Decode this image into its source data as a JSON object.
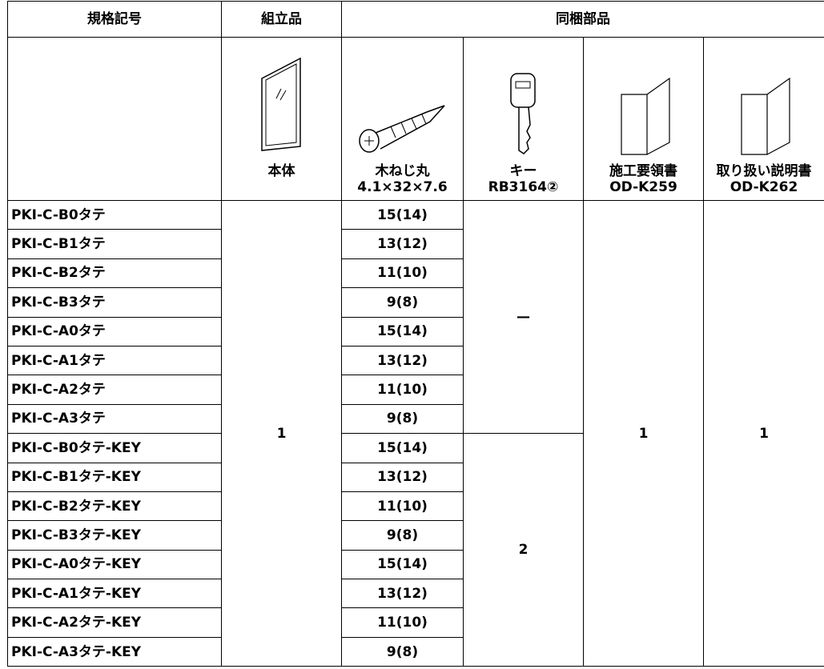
{
  "header": {
    "columns": [
      "規格記号",
      "組立品",
      "同梱部品"
    ]
  },
  "parts": [
    {
      "name": "本体"
    },
    {
      "name": "木ねじ丸",
      "spec": "4.1×32×7.6"
    },
    {
      "name": "キー",
      "spec": "RB3164②"
    },
    {
      "name": "施工要領書",
      "spec": "OD-K259"
    },
    {
      "name": "取り扱い説明書",
      "spec": "OD-K262"
    }
  ],
  "rows": [
    {
      "model": "PKI-C-B0タテ",
      "screws": "15(14)"
    },
    {
      "model": "PKI-C-B1タテ",
      "screws": "13(12)"
    },
    {
      "model": "PKI-C-B2タテ",
      "screws": "11(10)"
    },
    {
      "model": "PKI-C-B3タテ",
      "screws": "9(8)"
    },
    {
      "model": "PKI-C-A0タテ",
      "screws": "15(14)"
    },
    {
      "model": "PKI-C-A1タテ",
      "screws": "13(12)"
    },
    {
      "model": "PKI-C-A2タテ",
      "screws": "11(10)"
    },
    {
      "model": "PKI-C-A3タテ",
      "screws": "9(8)"
    },
    {
      "model": "PKI-C-B0タテ-KEY",
      "screws": "15(14)"
    },
    {
      "model": "PKI-C-B1タテ-KEY",
      "screws": "13(12)"
    },
    {
      "model": "PKI-C-B2タテ-KEY",
      "screws": "11(10)"
    },
    {
      "model": "PKI-C-B3タテ-KEY",
      "screws": "9(8)"
    },
    {
      "model": "PKI-C-A0タテ-KEY",
      "screws": "15(14)"
    },
    {
      "model": "PKI-C-A1タテ-KEY",
      "screws": "13(12)"
    },
    {
      "model": "PKI-C-A2タテ-KEY",
      "screws": "11(10)"
    },
    {
      "model": "PKI-C-A3タテ-KEY",
      "screws": "9(8)"
    }
  ],
  "assembly_qty": "1",
  "key_qty": [
    "—",
    "2"
  ],
  "manual_qty": "1",
  "instruction_qty": "1"
}
